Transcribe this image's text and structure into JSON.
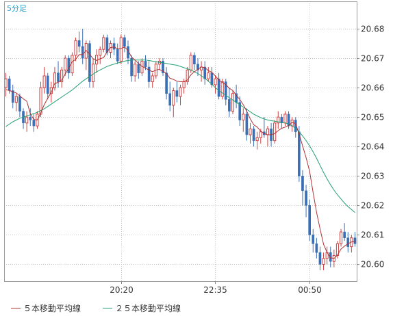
{
  "interval_label": "5分足",
  "legend": {
    "ma5_label": "５本移動平均線",
    "ma25_label": "２５本移動平均線"
  },
  "colors": {
    "up": "#d04040",
    "down": "#3a6fb5",
    "ma5": "#b03030",
    "ma25": "#20a070",
    "grid": "#c8c8c8",
    "axis_text": "#333333"
  },
  "chart_data": {
    "type": "candlestick",
    "title": "",
    "ylim": [
      20.5943,
      20.6893
    ],
    "y_ticks": [
      20.6,
      20.61,
      20.62,
      20.63,
      20.64,
      20.65,
      20.66,
      20.67,
      20.68
    ],
    "y_tick_labels": [
      "20.60",
      "20.61",
      "20.62",
      "20.63",
      "20.64",
      "20.65",
      "20.66",
      "20.67",
      "20.68"
    ],
    "x_tick_labels": [
      "20:20",
      "22:35",
      "00:50"
    ],
    "x_tick_index": [
      33,
      60,
      87
    ],
    "grid": true,
    "candles": [
      [
        20.66,
        20.665,
        20.657,
        20.663
      ],
      [
        20.663,
        20.664,
        20.658,
        20.659
      ],
      [
        20.659,
        20.661,
        20.653,
        20.655
      ],
      [
        20.655,
        20.658,
        20.652,
        20.657
      ],
      [
        20.657,
        20.658,
        20.65,
        20.652
      ],
      [
        20.652,
        20.653,
        20.646,
        20.648
      ],
      [
        20.648,
        20.652,
        20.645,
        20.65
      ],
      [
        20.65,
        20.653,
        20.647,
        20.649
      ],
      [
        20.649,
        20.651,
        20.645,
        20.647
      ],
      [
        20.647,
        20.652,
        20.646,
        20.651
      ],
      [
        20.651,
        20.662,
        20.65,
        20.66
      ],
      [
        20.66,
        20.667,
        20.658,
        20.664
      ],
      [
        20.664,
        20.665,
        20.656,
        20.658
      ],
      [
        20.658,
        20.662,
        20.655,
        20.66
      ],
      [
        20.66,
        20.667,
        20.659,
        20.665
      ],
      [
        20.665,
        20.669,
        20.66,
        20.662
      ],
      [
        20.662,
        20.667,
        20.66,
        20.666
      ],
      [
        20.666,
        20.671,
        20.664,
        20.67
      ],
      [
        20.67,
        20.671,
        20.663,
        20.665
      ],
      [
        20.665,
        20.672,
        20.664,
        20.671
      ],
      [
        20.671,
        20.677,
        20.669,
        20.676
      ],
      [
        20.676,
        20.679,
        20.672,
        20.674
      ],
      [
        20.674,
        20.68,
        20.668,
        20.67
      ],
      [
        20.67,
        20.676,
        20.666,
        20.675
      ],
      [
        20.675,
        20.676,
        20.66,
        20.662
      ],
      [
        20.662,
        20.67,
        20.66,
        20.668
      ],
      [
        20.668,
        20.673,
        20.665,
        20.671
      ],
      [
        20.671,
        20.674,
        20.668,
        20.673
      ],
      [
        20.673,
        20.678,
        20.672,
        20.677
      ],
      [
        20.677,
        20.678,
        20.671,
        20.672
      ],
      [
        20.672,
        20.676,
        20.67,
        20.675
      ],
      [
        20.675,
        20.677,
        20.671,
        20.673
      ],
      [
        20.673,
        20.675,
        20.668,
        20.669
      ],
      [
        20.669,
        20.678,
        20.668,
        20.677
      ],
      [
        20.677,
        20.678,
        20.672,
        20.674
      ],
      [
        20.674,
        20.676,
        20.668,
        20.67
      ],
      [
        20.67,
        20.671,
        20.662,
        20.664
      ],
      [
        20.664,
        20.669,
        20.662,
        20.668
      ],
      [
        20.668,
        20.669,
        20.663,
        20.665
      ],
      [
        20.665,
        20.67,
        20.664,
        20.669
      ],
      [
        20.669,
        20.671,
        20.666,
        20.667
      ],
      [
        20.667,
        20.669,
        20.66,
        20.662
      ],
      [
        20.662,
        20.665,
        20.66,
        20.664
      ],
      [
        20.664,
        20.669,
        20.663,
        20.668
      ],
      [
        20.668,
        20.67,
        20.666,
        20.669
      ],
      [
        20.669,
        20.67,
        20.664,
        20.665
      ],
      [
        20.665,
        20.667,
        20.656,
        20.658
      ],
      [
        20.658,
        20.662,
        20.652,
        20.654
      ],
      [
        20.654,
        20.66,
        20.65,
        20.659
      ],
      [
        20.659,
        20.662,
        20.655,
        20.657
      ],
      [
        20.657,
        20.661,
        20.654,
        20.66
      ],
      [
        20.66,
        20.663,
        20.658,
        20.662
      ],
      [
        20.662,
        20.667,
        20.661,
        20.666
      ],
      [
        20.666,
        20.672,
        20.665,
        20.671
      ],
      [
        20.671,
        20.672,
        20.666,
        20.668
      ],
      [
        20.668,
        20.67,
        20.664,
        20.666
      ],
      [
        20.666,
        20.669,
        20.662,
        20.667
      ],
      [
        20.667,
        20.669,
        20.661,
        20.663
      ],
      [
        20.663,
        20.667,
        20.662,
        20.665
      ],
      [
        20.665,
        20.667,
        20.66,
        20.661
      ],
      [
        20.661,
        20.664,
        20.658,
        20.663
      ],
      [
        20.663,
        20.665,
        20.656,
        20.657
      ],
      [
        20.657,
        20.663,
        20.656,
        20.662
      ],
      [
        20.662,
        20.663,
        20.654,
        20.656
      ],
      [
        20.656,
        20.66,
        20.65,
        20.652
      ],
      [
        20.652,
        20.659,
        20.651,
        20.658
      ],
      [
        20.658,
        20.661,
        20.653,
        20.655
      ],
      [
        20.655,
        20.657,
        20.647,
        20.649
      ],
      [
        20.649,
        20.653,
        20.645,
        20.651
      ],
      [
        20.651,
        20.653,
        20.642,
        20.644
      ],
      [
        20.644,
        20.648,
        20.641,
        20.646
      ],
      [
        20.646,
        20.647,
        20.64,
        20.642
      ],
      [
        20.642,
        20.645,
        20.639,
        20.643
      ],
      [
        20.643,
        20.646,
        20.641,
        20.645
      ],
      [
        20.645,
        20.65,
        20.643,
        20.644
      ],
      [
        20.644,
        20.647,
        20.64,
        20.646
      ],
      [
        20.646,
        20.648,
        20.64,
        20.642
      ],
      [
        20.642,
        20.649,
        20.641,
        20.648
      ],
      [
        20.648,
        20.652,
        20.646,
        20.65
      ],
      [
        20.65,
        20.651,
        20.646,
        20.648
      ],
      [
        20.648,
        20.652,
        20.647,
        20.651
      ],
      [
        20.651,
        20.652,
        20.646,
        20.647
      ],
      [
        20.647,
        20.65,
        20.645,
        20.649
      ],
      [
        20.649,
        20.65,
        20.643,
        20.645
      ],
      [
        20.645,
        20.647,
        20.628,
        20.63
      ],
      [
        20.63,
        20.632,
        20.62,
        20.625
      ],
      [
        20.625,
        20.627,
        20.616,
        20.62
      ],
      [
        20.62,
        20.622,
        20.608,
        20.61
      ],
      [
        20.61,
        20.612,
        20.604,
        20.607
      ],
      [
        20.607,
        20.609,
        20.602,
        20.604
      ],
      [
        20.604,
        20.606,
        20.598,
        20.6
      ],
      [
        20.6,
        20.604,
        20.598,
        20.602
      ],
      [
        20.602,
        20.606,
        20.6,
        20.604
      ],
      [
        20.604,
        20.606,
        20.599,
        20.601
      ],
      [
        20.601,
        20.605,
        20.599,
        20.603
      ],
      [
        20.603,
        20.608,
        20.602,
        20.607
      ],
      [
        20.607,
        20.612,
        20.606,
        20.611
      ],
      [
        20.611,
        20.614,
        20.608,
        20.609
      ],
      [
        20.609,
        20.611,
        20.604,
        20.606
      ],
      [
        20.606,
        20.61,
        20.604,
        20.609
      ],
      [
        20.609,
        20.611,
        20.606,
        20.607
      ]
    ],
    "ma5": [
      20.6594,
      20.659,
      20.6586,
      20.6582,
      20.6572,
      20.6562,
      20.6554,
      20.6512,
      20.6492,
      20.649,
      20.6514,
      20.6542,
      20.6564,
      20.6584,
      20.6614,
      20.6618,
      20.6626,
      20.6646,
      20.6666,
      20.6688,
      20.6696,
      20.6712,
      20.6712,
      20.6726,
      20.6714,
      20.6698,
      20.6692,
      20.6698,
      20.6702,
      20.6722,
      20.6736,
      20.6738,
      20.6732,
      20.6732,
      20.6738,
      20.6726,
      20.6704,
      20.6694,
      20.6682,
      20.6672,
      20.6666,
      20.666,
      20.6654,
      20.666,
      20.6662,
      20.6656,
      20.6648,
      20.6632,
      20.6628,
      20.6622,
      20.662,
      20.662,
      20.6626,
      20.6644,
      20.6654,
      20.6662,
      20.667,
      20.6668,
      20.6658,
      20.6652,
      20.664,
      20.6626,
      20.6618,
      20.661,
      20.6598,
      20.659,
      20.6574,
      20.656,
      20.6542,
      20.652,
      20.6494,
      20.6474,
      20.6466,
      20.6452,
      20.6444,
      20.644,
      20.644,
      20.6444,
      20.6454,
      20.6462,
      20.6466,
      20.6472,
      20.6482,
      20.6478,
      20.6442,
      20.6402,
      20.6362,
      20.6316,
      20.6244,
      20.6176,
      20.612,
      20.6068,
      20.604,
      20.6022,
      20.602,
      20.6032,
      20.6052,
      20.6062,
      20.607,
      20.6076,
      20.6078
    ],
    "ma25": [
      20.6468,
      20.6476,
      20.6484,
      20.649,
      20.6496,
      20.65,
      20.6504,
      20.6508,
      20.6512,
      20.6516,
      20.6522,
      20.6528,
      20.6536,
      20.6544,
      20.6552,
      20.656,
      20.6568,
      20.6576,
      20.6584,
      20.6592,
      20.6602,
      20.6612,
      20.6622,
      20.663,
      20.6638,
      20.6646,
      20.6654,
      20.666,
      20.6666,
      20.6672,
      20.6676,
      20.668,
      20.6684,
      20.6686,
      20.669,
      20.6692,
      20.6694,
      20.6694,
      20.6694,
      20.6694,
      20.6694,
      20.6692,
      20.669,
      20.6688,
      20.6686,
      20.6684,
      20.6682,
      20.668,
      20.6678,
      20.6676,
      20.6672,
      20.6668,
      20.6664,
      20.666,
      20.6654,
      20.6648,
      20.664,
      20.6632,
      20.6622,
      20.6612,
      20.66,
      20.659,
      20.6582,
      20.6574,
      20.6566,
      20.6558,
      20.655,
      20.6542,
      20.6534,
      20.6526,
      20.6518,
      20.651,
      20.6504,
      20.6498,
      20.6494,
      20.649,
      20.6488,
      20.6486,
      20.6484,
      20.6482,
      20.648,
      20.6476,
      20.647,
      20.6462,
      20.645,
      20.6436,
      20.642,
      20.6402,
      20.6382,
      20.636,
      20.6336,
      20.6312,
      20.629,
      20.627,
      20.6252,
      20.6236,
      20.6222,
      20.6208,
      20.6196,
      20.6186,
      20.6176
    ]
  }
}
